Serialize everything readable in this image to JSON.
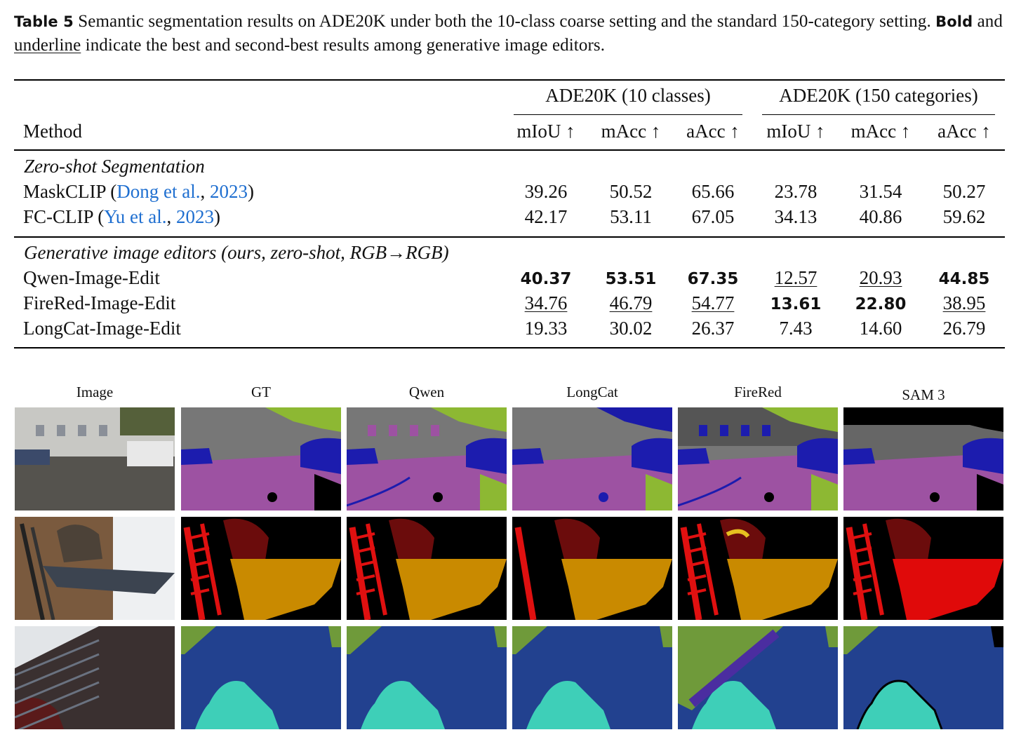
{
  "caption": {
    "label": "Table 5",
    "parts": [
      "Semantic segmentation results on ADE20K under both the 10-class coarse setting and the standard 150-category setting. ",
      "Bold",
      " and ",
      "underline",
      " indicate the best and second-best results among generative image editors."
    ]
  },
  "table": {
    "method_header": "Method",
    "groups": [
      "ADE20K (10 classes)",
      "ADE20K (150 categories)"
    ],
    "columns": [
      "mIoU ↑",
      "mAcc ↑",
      "aAcc ↑",
      "mIoU ↑",
      "mAcc ↑",
      "aAcc ↑"
    ],
    "sections": [
      {
        "title": "Zero-shot Segmentation",
        "rows": [
          {
            "method": "MaskCLIP",
            "cite": [
              "(",
              "Dong et al.",
              ", ",
              "2023",
              ")"
            ],
            "values": [
              "39.26",
              "50.52",
              "65.66",
              "23.78",
              "31.54",
              "50.27"
            ]
          },
          {
            "method": "FC-CLIP",
            "cite": [
              "(",
              "Yu et al.",
              ", ",
              "2023",
              ")"
            ],
            "values": [
              "42.17",
              "53.11",
              "67.05",
              "34.13",
              "40.86",
              "59.62"
            ]
          }
        ]
      },
      {
        "title": "Generative image editors (ours, zero-shot, RGB→RGB)",
        "rows": [
          {
            "method": "Qwen-Image-Edit",
            "values": [
              "40.37",
              "53.51",
              "67.35",
              "12.57",
              "20.93",
              "44.85"
            ],
            "emphasis": [
              "bold",
              "bold",
              "bold",
              "underline",
              "underline",
              "bold"
            ]
          },
          {
            "method": "FireRed-Image-Edit",
            "values": [
              "34.76",
              "46.79",
              "54.77",
              "13.61",
              "22.80",
              "38.95"
            ],
            "emphasis": [
              "underline",
              "underline",
              "underline",
              "bold",
              "bold",
              "underline"
            ]
          },
          {
            "method": "LongCat-Image-Edit",
            "values": [
              "19.33",
              "30.02",
              "26.37",
              "7.43",
              "14.60",
              "26.79"
            ]
          }
        ]
      }
    ]
  },
  "figure": {
    "columns": [
      "Image",
      "GT",
      "Qwen",
      "LongCat",
      "FireRed",
      "SAM 3"
    ]
  }
}
